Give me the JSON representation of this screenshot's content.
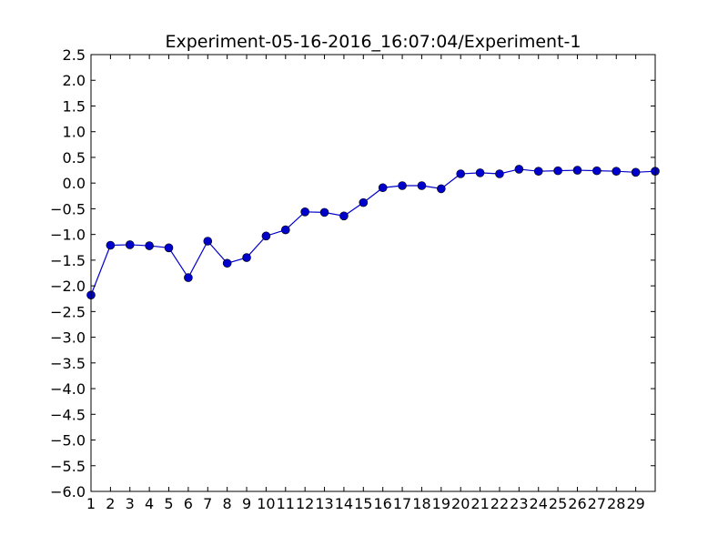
{
  "chart_data": {
    "type": "line",
    "title": "Experiment-05-16-2016_16:07:04/Experiment-1",
    "xlabel": "",
    "ylabel": "",
    "xlim": [
      1,
      30
    ],
    "ylim": [
      -6.0,
      2.5
    ],
    "x_ticks": [
      1,
      2,
      3,
      4,
      5,
      6,
      7,
      8,
      9,
      10,
      11,
      12,
      13,
      14,
      15,
      16,
      17,
      18,
      19,
      20,
      21,
      22,
      23,
      24,
      25,
      26,
      27,
      28,
      29
    ],
    "y_ticks": [
      "2.5",
      "2.0",
      "1.5",
      "1.0",
      "0.5",
      "0.0",
      "−0.5",
      "−1.0",
      "−1.5",
      "−2.0",
      "−2.5",
      "−3.0",
      "−3.5",
      "−4.0",
      "−4.5",
      "−5.0",
      "−5.5",
      "−6.0"
    ],
    "y_tick_values": [
      2.5,
      2.0,
      1.5,
      1.0,
      0.5,
      0.0,
      -0.5,
      -1.0,
      -1.5,
      -2.0,
      -2.5,
      -3.0,
      -3.5,
      -4.0,
      -4.5,
      -5.0,
      -5.5,
      -6.0
    ],
    "grid": false,
    "series": [
      {
        "color": "#0000cc",
        "x": [
          1,
          2,
          3,
          4,
          5,
          6,
          7,
          8,
          9,
          10,
          11,
          12,
          13,
          14,
          15,
          16,
          17,
          18,
          19,
          20,
          21,
          22,
          23,
          24,
          25,
          26,
          27,
          28,
          29,
          30
        ],
        "values": [
          -2.18,
          -1.21,
          -1.2,
          -1.22,
          -1.26,
          -1.84,
          -1.13,
          -1.56,
          -1.45,
          -1.03,
          -0.91,
          -0.56,
          -0.57,
          -0.64,
          -0.38,
          -0.09,
          -0.05,
          -0.05,
          -0.11,
          0.18,
          0.2,
          0.18,
          0.27,
          0.23,
          0.24,
          0.25,
          0.24,
          0.23,
          0.21,
          0.23
        ]
      }
    ]
  }
}
